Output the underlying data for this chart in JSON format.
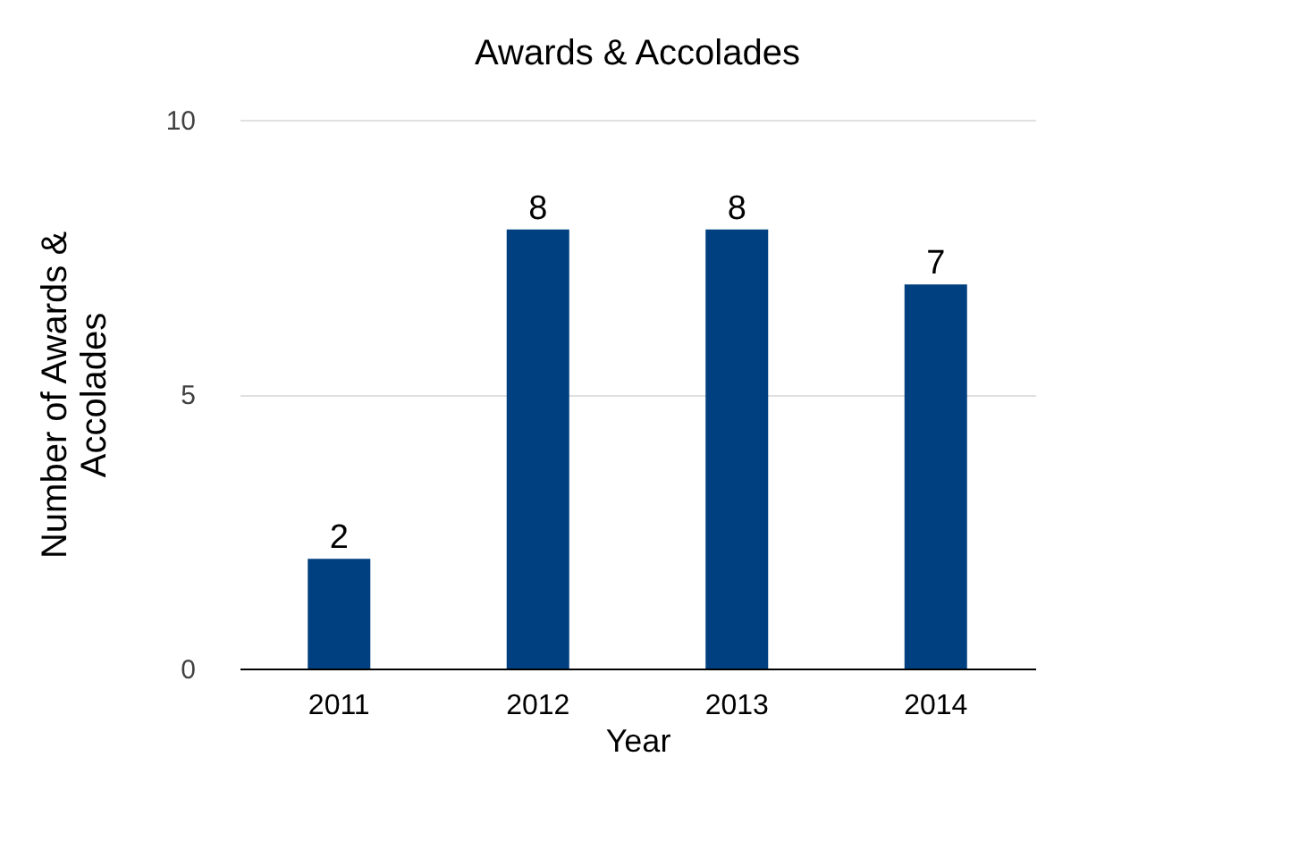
{
  "chart_data": {
    "type": "bar",
    "title": "Awards & Accolades",
    "xlabel": "Year",
    "ylabel": "Number of Awards & Accolades",
    "categories": [
      "2011",
      "2012",
      "2013",
      "2014"
    ],
    "values": [
      2,
      8,
      8,
      7
    ],
    "color": "#004080",
    "ylim": [
      0,
      10
    ],
    "yticks": [
      0,
      5,
      10
    ],
    "grid": "y",
    "data_labels": true
  }
}
